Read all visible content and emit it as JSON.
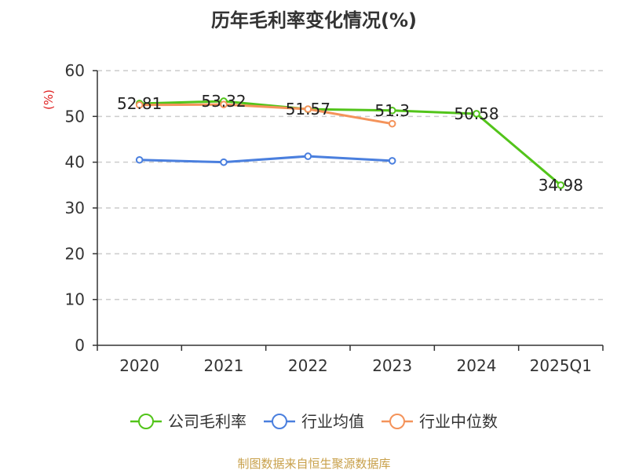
{
  "chart_data": {
    "type": "line",
    "title": "历年毛利率变化情况(%)",
    "ylabel": "(%)",
    "xlabel": "",
    "categories": [
      "2020",
      "2021",
      "2022",
      "2023",
      "2024",
      "2025Q1"
    ],
    "ylim": [
      0,
      60
    ],
    "yticks": [
      0,
      10,
      20,
      30,
      40,
      50,
      60
    ],
    "grid": true,
    "legend_position": "bottom",
    "series": [
      {
        "name": "公司毛利率",
        "color": "#52c41a",
        "values": [
          52.81,
          53.32,
          51.57,
          51.3,
          50.58,
          34.98
        ],
        "labels": [
          "52.81",
          "53.32",
          "51.57",
          "51.3",
          "50.58",
          "34.98"
        ]
      },
      {
        "name": "行业均值",
        "color": "#4a7fde",
        "values": [
          40.5,
          40.0,
          41.3,
          40.3,
          null,
          null
        ]
      },
      {
        "name": "行业中位数",
        "color": "#f4935a",
        "values": [
          52.5,
          52.6,
          51.6,
          48.4,
          null,
          null
        ]
      }
    ]
  },
  "source": "制图数据来自恒生聚源数据库"
}
